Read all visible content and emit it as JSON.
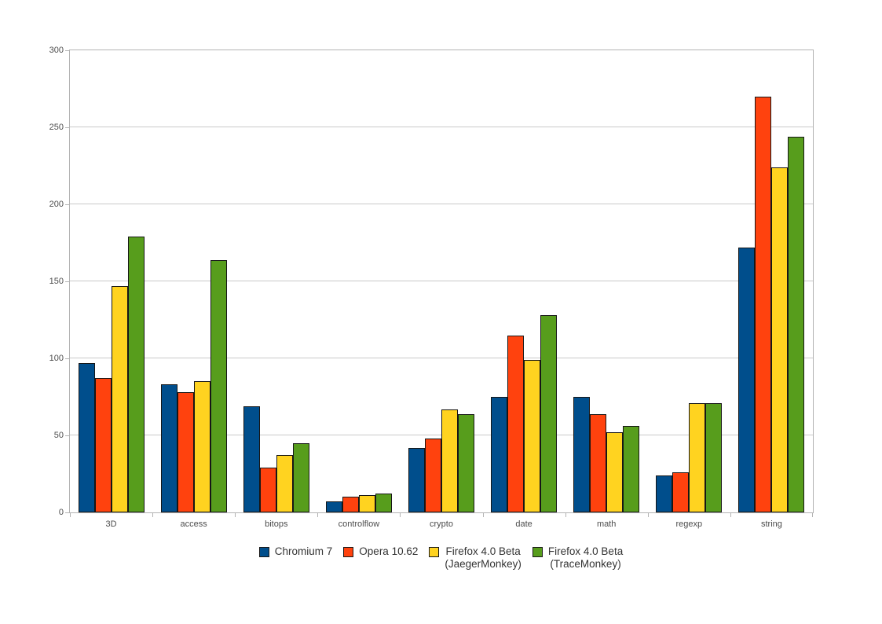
{
  "chart_data": {
    "type": "bar",
    "title": "",
    "xlabel": "",
    "ylabel": "",
    "categories": [
      "3D",
      "access",
      "bitops",
      "controlflow",
      "crypto",
      "date",
      "math",
      "regexp",
      "string"
    ],
    "series": [
      {
        "name": "Chromium 7",
        "color": "#004E8C",
        "values": [
          97,
          83,
          69,
          7,
          42,
          75,
          75,
          24,
          172
        ]
      },
      {
        "name": "Opera 10.62",
        "color": "#FF420E",
        "values": [
          87,
          78,
          29,
          10,
          48,
          115,
          64,
          26,
          270
        ]
      },
      {
        "name": "Firefox 4.0 Beta\n(JaegerMonkey)",
        "color": "#FFD320",
        "values": [
          147,
          85,
          37,
          11,
          67,
          99,
          52,
          71,
          224
        ]
      },
      {
        "name": "Firefox 4.0 Beta\n(TraceMonkey)",
        "color": "#579D1C",
        "values": [
          179,
          164,
          45,
          12,
          64,
          128,
          56,
          71,
          244
        ]
      }
    ],
    "ylim": [
      0,
      300
    ],
    "yticks": [
      0,
      50,
      100,
      150,
      200,
      250,
      300
    ],
    "grid": true,
    "legend_position": "bottom",
    "bar_outline_color": "#161616",
    "gridline_color": "#c9c9c9",
    "axis_frame_color": "#b3b3b3",
    "tick_label_color": "#4c4c4c",
    "legend_text_color": "#333333",
    "background_color": "#ffffff"
  }
}
